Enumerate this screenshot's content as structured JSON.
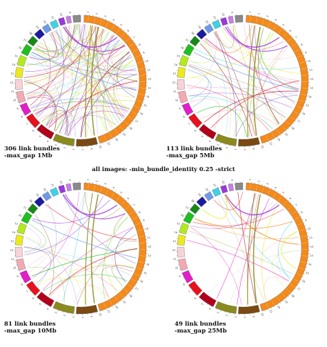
{
  "footer_note": "all images: -min_bundle_identity 0.25 -strict",
  "panels": [
    {
      "line1": "306 link bundles",
      "line2": "-max_gap 1Mb",
      "links": 306
    },
    {
      "line1": "113 link bundles",
      "line2": "-max_gap 5Mb",
      "links": 113
    },
    {
      "line1": "81 link bundles",
      "line2": "-max_gap 10Mb",
      "links": 81
    },
    {
      "line1": "49 link bundles",
      "line2": "-max_gap 25Mb",
      "links": 49
    }
  ],
  "ideogram_colors": {
    "orange_large": "#f28a1c",
    "brown": "#7a4a12",
    "olive": "#8b8a1f",
    "dark_red": "#b2001b",
    "red": "#e8121e",
    "magenta": "#e21ec9",
    "pink": "#f2a9b4",
    "light_pink": "#f7d3d8",
    "yellow": "#ece91d",
    "lime": "#b3ea1f",
    "green": "#1fbf1f",
    "dark_green": "#168a16",
    "blue": "#1b1ba0",
    "light_blue": "#6e9be8",
    "cyan": "#3ed2e8",
    "purple": "#9b37e0",
    "violet": "#c77ee8",
    "gray": "#8a8a8a"
  },
  "chromosome_labels": [
    "1",
    "2",
    "3",
    "4",
    "5",
    "6",
    "7",
    "8",
    "9",
    "10",
    "11",
    "12",
    "13",
    "14",
    "15",
    "16",
    "17",
    "18",
    "19",
    "20",
    "21",
    "22",
    "X",
    "Y"
  ]
}
